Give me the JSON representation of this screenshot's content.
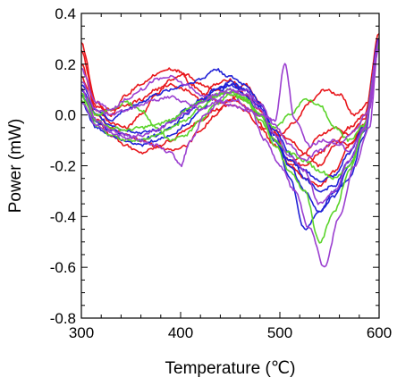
{
  "chart_data": {
    "type": "line",
    "title": "",
    "xlabel": "Temperature (℃)",
    "ylabel": "Power (mW)",
    "xlim": [
      300,
      600
    ],
    "ylim": [
      -0.8,
      0.4
    ],
    "xticks": [
      300,
      400,
      500,
      600
    ],
    "yticks": [
      -0.8,
      -0.6,
      -0.4,
      -0.2,
      0.0,
      0.2,
      0.4
    ],
    "ytick_labels": [
      "-0.8",
      "-0.6",
      "-0.4",
      "-0.2",
      "0.0",
      "0.2",
      "0.4"
    ],
    "grid": false,
    "legend": "none",
    "series": [
      {
        "color": "#e8161b",
        "x": [
          300,
          315,
          330,
          345,
          360,
          375,
          390,
          400,
          410,
          425,
          440,
          455,
          470,
          485,
          500,
          515,
          530,
          545,
          560,
          575,
          590,
          600
        ],
        "y": [
          0.28,
          0.05,
          0.0,
          0.08,
          0.12,
          0.16,
          0.18,
          0.17,
          0.12,
          0.08,
          0.05,
          0.06,
          0.02,
          -0.05,
          -0.08,
          -0.03,
          0.05,
          0.1,
          0.08,
          0.0,
          0.05,
          0.3
        ]
      },
      {
        "color": "#e8161b",
        "x": [
          300,
          315,
          330,
          345,
          360,
          375,
          390,
          405,
          420,
          435,
          450,
          465,
          480,
          495,
          510,
          525,
          540,
          555,
          570,
          585,
          600
        ],
        "y": [
          0.2,
          0.02,
          -0.03,
          -0.05,
          0.0,
          0.08,
          0.14,
          0.16,
          0.12,
          0.1,
          0.08,
          0.06,
          0.0,
          -0.06,
          -0.1,
          -0.15,
          -0.2,
          -0.12,
          -0.05,
          0.0,
          0.3
        ]
      },
      {
        "color": "#e8161b",
        "x": [
          300,
          315,
          330,
          345,
          360,
          375,
          390,
          405,
          420,
          435,
          450,
          465,
          480,
          495,
          510,
          525,
          540,
          555,
          570,
          585,
          600
        ],
        "y": [
          0.1,
          -0.02,
          -0.08,
          -0.12,
          -0.15,
          -0.13,
          -0.1,
          -0.06,
          -0.02,
          0.02,
          0.04,
          0.02,
          -0.05,
          -0.12,
          -0.18,
          -0.2,
          -0.15,
          -0.1,
          -0.12,
          -0.05,
          0.28
        ]
      },
      {
        "color": "#e8161b",
        "x": [
          300,
          315,
          330,
          345,
          360,
          375,
          390,
          405,
          420,
          435,
          450,
          465,
          480,
          495,
          510,
          525,
          540,
          555,
          570,
          585,
          600
        ],
        "y": [
          0.15,
          0.0,
          -0.05,
          -0.08,
          -0.1,
          -0.12,
          -0.14,
          -0.12,
          -0.06,
          0.0,
          0.06,
          0.12,
          0.05,
          -0.08,
          -0.2,
          -0.25,
          -0.28,
          -0.22,
          -0.12,
          -0.04,
          0.3
        ]
      },
      {
        "color": "#e8161b",
        "x": [
          300,
          315,
          330,
          345,
          360,
          375,
          390,
          405,
          420,
          435,
          450,
          465,
          480,
          495,
          510,
          525,
          540,
          555,
          570,
          585,
          600
        ],
        "y": [
          0.25,
          0.03,
          0.02,
          0.04,
          0.06,
          0.1,
          0.12,
          0.1,
          0.06,
          0.12,
          0.14,
          0.08,
          0.02,
          -0.1,
          -0.2,
          -0.15,
          -0.08,
          -0.05,
          -0.08,
          -0.02,
          0.32
        ]
      },
      {
        "color": "#2121d6",
        "x": [
          300,
          315,
          330,
          345,
          360,
          375,
          390,
          405,
          420,
          435,
          450,
          465,
          480,
          495,
          510,
          525,
          540,
          555,
          570,
          585,
          600
        ],
        "y": [
          0.12,
          0.02,
          -0.02,
          0.02,
          0.05,
          0.08,
          0.1,
          0.12,
          0.14,
          0.18,
          0.15,
          0.12,
          0.05,
          -0.08,
          -0.25,
          -0.45,
          -0.38,
          -0.3,
          -0.25,
          -0.08,
          0.3
        ]
      },
      {
        "color": "#2121d6",
        "x": [
          300,
          315,
          330,
          345,
          360,
          375,
          390,
          405,
          420,
          435,
          450,
          465,
          480,
          495,
          510,
          525,
          540,
          555,
          570,
          585,
          600
        ],
        "y": [
          0.08,
          -0.03,
          -0.06,
          -0.08,
          -0.1,
          -0.08,
          -0.05,
          0.0,
          0.05,
          0.1,
          0.13,
          0.1,
          0.03,
          -0.1,
          -0.2,
          -0.3,
          -0.38,
          -0.32,
          -0.2,
          -0.06,
          0.28
        ]
      },
      {
        "color": "#2121d6",
        "x": [
          300,
          315,
          330,
          345,
          360,
          375,
          390,
          405,
          420,
          435,
          450,
          465,
          480,
          495,
          510,
          525,
          540,
          555,
          570,
          585,
          600
        ],
        "y": [
          0.05,
          -0.05,
          -0.08,
          -0.1,
          -0.12,
          -0.1,
          -0.08,
          -0.04,
          0.02,
          0.08,
          0.12,
          0.1,
          0.04,
          -0.06,
          -0.15,
          -0.25,
          -0.3,
          -0.28,
          -0.18,
          -0.05,
          0.27
        ]
      },
      {
        "color": "#2121d6",
        "x": [
          300,
          315,
          330,
          345,
          360,
          375,
          390,
          405,
          420,
          435,
          450,
          465,
          480,
          495,
          510,
          525,
          540,
          555,
          570,
          585,
          600
        ],
        "y": [
          0.1,
          0.0,
          -0.04,
          -0.06,
          -0.07,
          -0.06,
          -0.03,
          0.02,
          0.06,
          0.1,
          0.12,
          0.08,
          0.0,
          -0.1,
          -0.18,
          -0.22,
          -0.26,
          -0.24,
          -0.15,
          -0.04,
          0.29
        ]
      },
      {
        "color": "#5bd42b",
        "x": [
          300,
          315,
          330,
          345,
          360,
          375,
          390,
          405,
          420,
          435,
          450,
          465,
          480,
          495,
          510,
          525,
          540,
          555,
          570,
          585,
          600
        ],
        "y": [
          0.09,
          0.0,
          0.02,
          0.05,
          0.02,
          -0.05,
          -0.1,
          -0.08,
          -0.02,
          0.04,
          0.08,
          0.06,
          0.0,
          -0.05,
          0.0,
          0.06,
          0.04,
          -0.05,
          -0.1,
          -0.04,
          0.27
        ]
      },
      {
        "color": "#5bd42b",
        "x": [
          300,
          315,
          330,
          345,
          360,
          375,
          390,
          405,
          420,
          435,
          450,
          465,
          480,
          495,
          510,
          525,
          540,
          555,
          570,
          585,
          600
        ],
        "y": [
          0.06,
          -0.04,
          -0.08,
          -0.1,
          -0.1,
          -0.08,
          -0.05,
          -0.02,
          0.03,
          0.07,
          0.1,
          0.07,
          0.0,
          -0.12,
          -0.22,
          -0.3,
          -0.5,
          -0.38,
          -0.22,
          -0.06,
          0.27
        ]
      },
      {
        "color": "#5bd42b",
        "x": [
          300,
          315,
          330,
          345,
          360,
          375,
          390,
          405,
          420,
          435,
          450,
          465,
          480,
          495,
          510,
          525,
          540,
          555,
          570,
          585,
          600
        ],
        "y": [
          0.07,
          -0.02,
          -0.05,
          -0.06,
          -0.05,
          -0.04,
          -0.02,
          0.02,
          0.05,
          0.08,
          0.09,
          0.06,
          -0.02,
          -0.1,
          -0.15,
          -0.18,
          -0.22,
          -0.25,
          -0.2,
          -0.05,
          0.28
        ]
      },
      {
        "color": "#9b3fd0",
        "x": [
          300,
          315,
          330,
          345,
          360,
          375,
          390,
          405,
          420,
          435,
          450,
          465,
          480,
          495,
          505,
          515,
          530,
          545,
          560,
          575,
          590,
          600
        ],
        "y": [
          0.18,
          0.05,
          0.02,
          0.06,
          0.1,
          0.14,
          0.15,
          0.12,
          0.08,
          0.06,
          0.04,
          0.02,
          0.0,
          -0.02,
          0.2,
          -0.02,
          -0.12,
          -0.1,
          -0.12,
          -0.06,
          0.02,
          0.3
        ]
      },
      {
        "color": "#9b3fd0",
        "x": [
          300,
          315,
          330,
          345,
          360,
          375,
          390,
          400,
          410,
          425,
          440,
          455,
          470,
          485,
          500,
          515,
          530,
          545,
          560,
          575,
          590,
          600
        ],
        "y": [
          0.1,
          -0.02,
          -0.06,
          -0.08,
          -0.1,
          -0.12,
          -0.15,
          -0.2,
          -0.1,
          0.0,
          0.05,
          0.06,
          0.02,
          -0.1,
          -0.2,
          -0.3,
          -0.45,
          -0.6,
          -0.4,
          -0.2,
          -0.05,
          0.3
        ]
      },
      {
        "color": "#9b3fd0",
        "x": [
          300,
          315,
          330,
          345,
          360,
          375,
          390,
          405,
          420,
          435,
          450,
          465,
          480,
          495,
          510,
          525,
          540,
          555,
          570,
          585,
          600
        ],
        "y": [
          0.05,
          -0.04,
          -0.07,
          -0.09,
          -0.08,
          -0.06,
          -0.03,
          0.01,
          0.05,
          0.08,
          0.1,
          0.08,
          0.02,
          -0.08,
          -0.16,
          -0.22,
          -0.35,
          -0.3,
          -0.18,
          -0.05,
          0.26
        ]
      },
      {
        "color": "#9b3fd0",
        "x": [
          300,
          315,
          330,
          345,
          360,
          375,
          390,
          405,
          420,
          435,
          450,
          465,
          480,
          495,
          510,
          525,
          540,
          555,
          570,
          585,
          600
        ],
        "y": [
          0.13,
          0.02,
          0.0,
          0.02,
          0.04,
          0.06,
          0.07,
          0.05,
          0.02,
          0.05,
          0.09,
          0.1,
          0.04,
          -0.04,
          -0.12,
          -0.18,
          -0.14,
          -0.1,
          -0.14,
          -0.06,
          0.29
        ]
      }
    ]
  }
}
